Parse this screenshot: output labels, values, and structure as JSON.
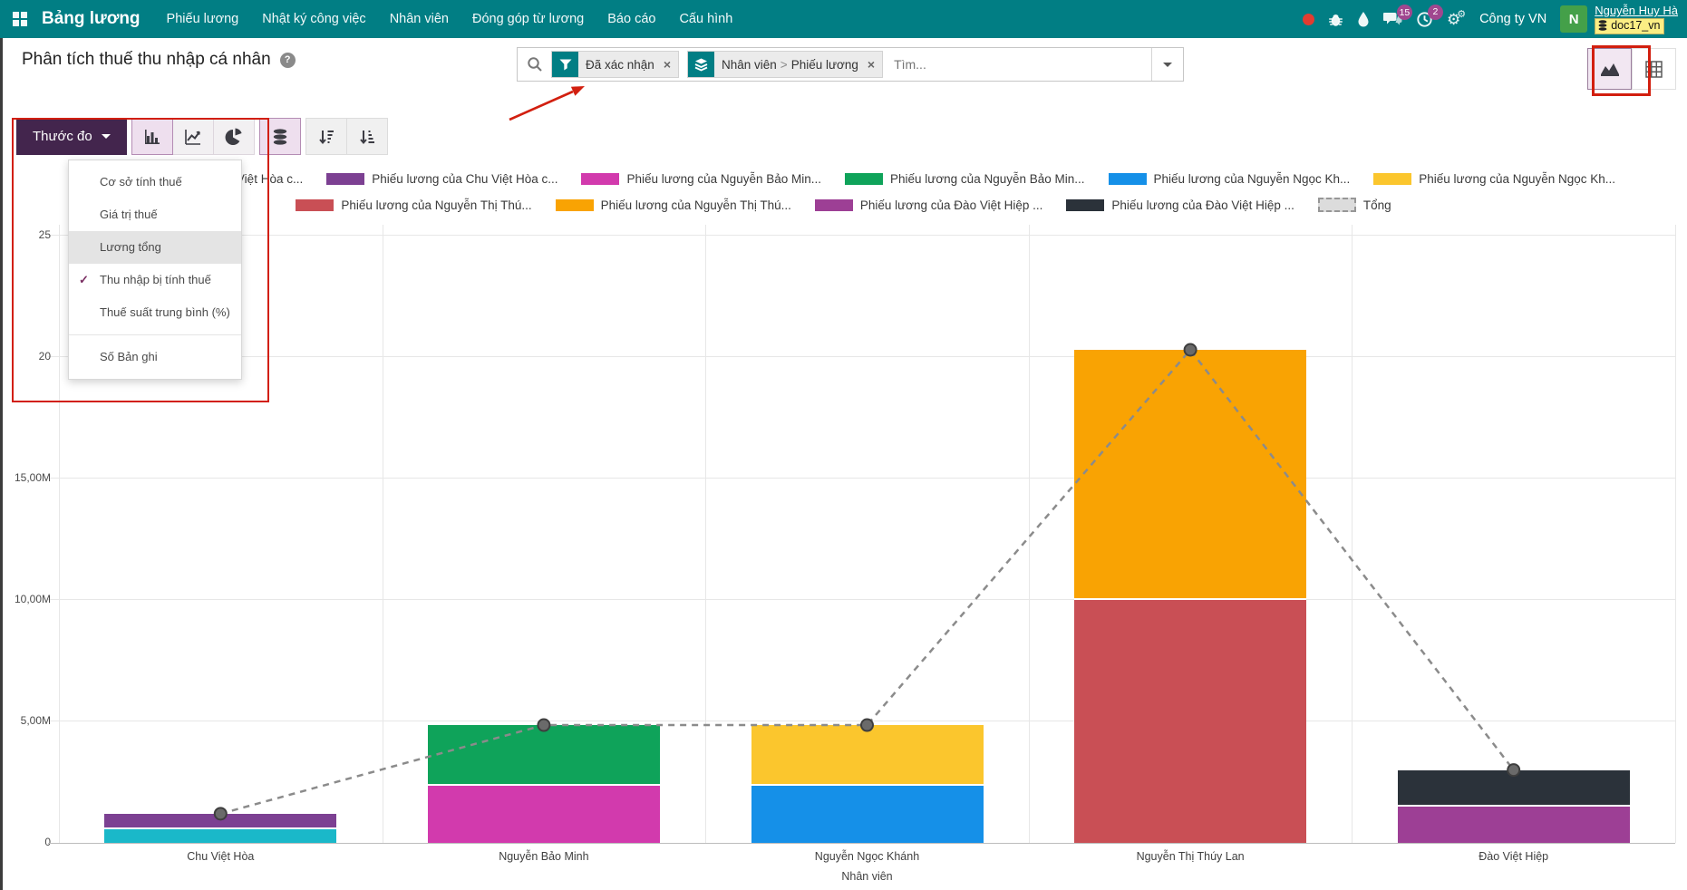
{
  "navbar": {
    "brand": "Bảng lương",
    "menu_items": [
      "Phiếu lương",
      "Nhật ký công việc",
      "Nhân viên",
      "Đóng góp từ lương",
      "Báo cáo",
      "Cấu hình"
    ],
    "systray": {
      "chat_badge": "15",
      "activity_badge": "2",
      "company_name": "Công ty VN",
      "avatar_initial": "N",
      "user_name": "Nguyễn Huy Hà",
      "database_name": "doc17_vn"
    }
  },
  "control_panel": {
    "title": "Phân tích thuế thu nhập cá nhân",
    "help_symbol": "?",
    "search": {
      "filter_facet": "Đã xác nhận",
      "groupby_facet_first": "Nhân viên",
      "groupby_separator": ">",
      "groupby_facet_second": "Phiếu lương",
      "placeholder": "Tìm..."
    }
  },
  "toolbar": {
    "measures_button": "Thước đo",
    "measures_menu": [
      {
        "label": "Cơ sở tính thuế",
        "checked": false,
        "highlighted": false,
        "group": 1
      },
      {
        "label": "Giá trị thuế",
        "checked": false,
        "highlighted": false,
        "group": 1
      },
      {
        "label": "Lương tổng",
        "checked": false,
        "highlighted": true,
        "group": 1
      },
      {
        "label": "Thu nhập bị tính thuế",
        "checked": true,
        "highlighted": false,
        "group": 1
      },
      {
        "label": "Thuế suất trung bình (%)",
        "checked": false,
        "highlighted": false,
        "group": 1
      },
      {
        "label": "Số Bản ghi",
        "checked": false,
        "highlighted": false,
        "group": 2
      }
    ]
  },
  "chart_data": {
    "type": "bar",
    "stacked": true,
    "measure": "Thu nhập bị tính thuế",
    "xlabel": "Nhân viên",
    "unit": "M (triệu VND)",
    "ylim": [
      0,
      25.4
    ],
    "grid": true,
    "legend_position": "top",
    "y_ticks": [
      {
        "value": 0,
        "label": "0"
      },
      {
        "value": 5,
        "label": "5,00M"
      },
      {
        "value": 10,
        "label": "10,00M"
      },
      {
        "value": 15,
        "label": "15,00M"
      },
      {
        "value": 20,
        "label": "20"
      },
      {
        "value": 25,
        "label": "25"
      }
    ],
    "categories": [
      "Chu Việt Hòa",
      "Nguyễn Bảo Minh",
      "Nguyễn Ngọc Khánh",
      "Nguyễn Thị Thúy Lan",
      "Đào Việt Hiệp"
    ],
    "bars": [
      {
        "category": "Chu Việt Hòa",
        "segments": [
          {
            "label": "Phiếu lương của Chu Việt Hòa c...",
            "color": "#1ab8c9",
            "value": 0.55
          },
          {
            "label": "Phiếu lương của Chu Việt Hòa c...",
            "color": "#7c4092",
            "value": 0.65
          }
        ]
      },
      {
        "category": "Nguyễn Bảo Minh",
        "segments": [
          {
            "label": "Phiếu lương của Nguyễn Bảo Min...",
            "color": "#d23aad",
            "value": 2.35
          },
          {
            "label": "Phiếu lương của Nguyễn Bảo Min...",
            "color": "#0fa35a",
            "value": 2.5
          }
        ]
      },
      {
        "category": "Nguyễn Ngọc Khánh",
        "segments": [
          {
            "label": "Phiếu lương của Nguyễn Ngọc Kh...",
            "color": "#1590e8",
            "value": 2.35
          },
          {
            "label": "Phiếu lương của Nguyễn Ngọc Kh...",
            "color": "#fbc62d",
            "value": 2.5
          }
        ]
      },
      {
        "category": "Nguyễn Thị Thúy Lan",
        "segments": [
          {
            "label": "Phiếu lương của Nguyễn Thị Thú...",
            "color": "#c94f55",
            "value": 10.0
          },
          {
            "label": "Phiếu lương của Nguyễn Thị Thú...",
            "color": "#f9a303",
            "value": 10.3
          }
        ]
      },
      {
        "category": "Đào Việt Hiệp",
        "segments": [
          {
            "label": "Phiếu lương của Đào Việt Hiệp ...",
            "color": "#9d3f95",
            "value": 1.5
          },
          {
            "label": "Phiếu lương của Đào Việt Hiệp ...",
            "color": "#2b323a",
            "value": 1.5
          }
        ]
      }
    ],
    "total_line": {
      "label": "Tổng",
      "style": "dashed",
      "color": "#8b8b8b",
      "values": [
        1.2,
        4.85,
        4.85,
        20.3,
        3.0
      ]
    }
  },
  "colors": {
    "navbar_bg": "#017e84",
    "primary_button_bg": "#43254d",
    "badge_bg": "#a0478f",
    "annotation_red": "#d21f0f",
    "database_badge_bg": "#fbee84"
  },
  "icons": {
    "check": "✓",
    "close": "×",
    "gear": "⚙"
  }
}
